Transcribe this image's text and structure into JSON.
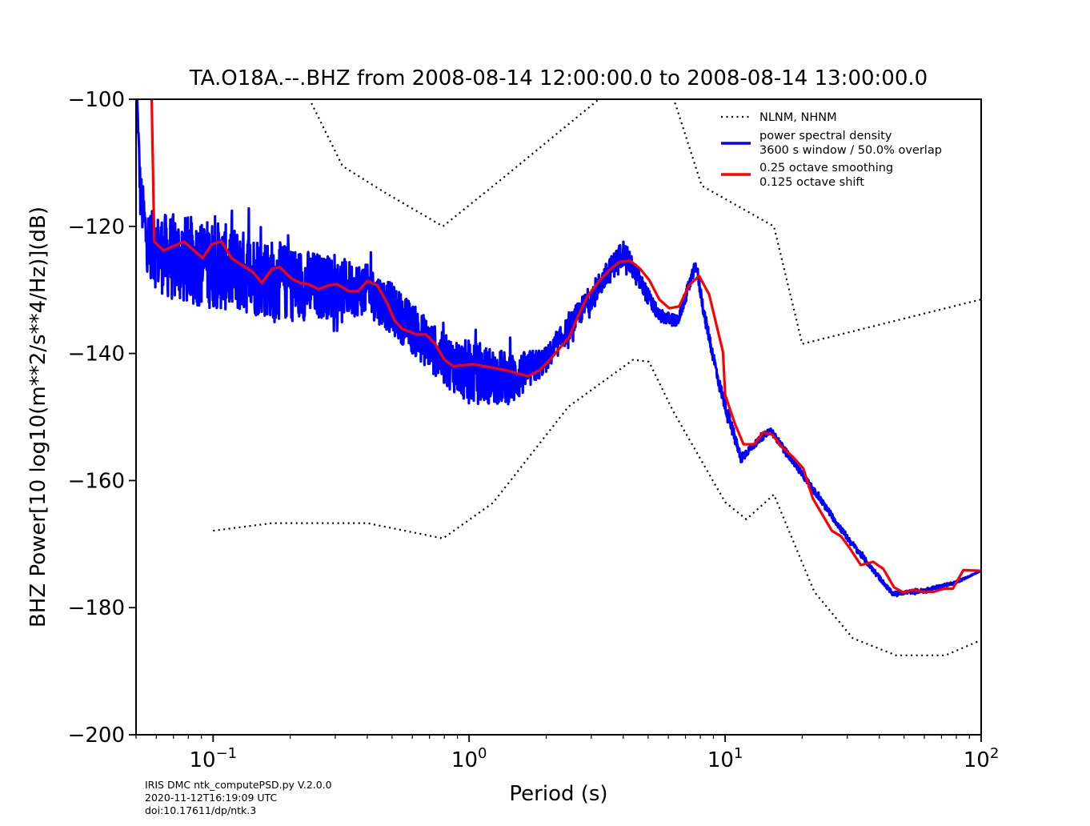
{
  "chart_data": {
    "type": "line",
    "title": "TA.O18A.--.BHZ from  2008-08-14 12:00:00.0 to 2008-08-14 13:00:00.0",
    "xlabel": "Period (s)",
    "ylabel": "BHZ Power[10 log10(m**2/s**4/Hz)](dB)",
    "xscale": "log",
    "xlim": [
      0.05,
      100
    ],
    "ylim": [
      -200,
      -100
    ],
    "x_ticks": [
      {
        "value": 0.1,
        "base": "10",
        "exp": "−1"
      },
      {
        "value": 1,
        "base": "10",
        "exp": "0"
      },
      {
        "value": 10,
        "base": "10",
        "exp": "1"
      },
      {
        "value": 100,
        "base": "10",
        "exp": "2"
      }
    ],
    "y_ticks": [
      {
        "value": -100,
        "label": "−100"
      },
      {
        "value": -120,
        "label": "−120"
      },
      {
        "value": -140,
        "label": "−140"
      },
      {
        "value": -160,
        "label": "−160"
      },
      {
        "value": -180,
        "label": "−180"
      },
      {
        "value": -200,
        "label": "−200"
      }
    ],
    "grid": false,
    "legend_position": "top-right",
    "legend": [
      {
        "style": "dotted",
        "color": "#000000",
        "lines": [
          "NLNM, NHNM"
        ]
      },
      {
        "style": "solid",
        "color": "#0000ff",
        "lines": [
          "power spectral density",
          "3600 s window / 50.0% overlap"
        ]
      },
      {
        "style": "solid",
        "color": "#ff0000",
        "lines": [
          "0.25 octave smoothing",
          "0.125 octave shift"
        ]
      }
    ],
    "series": [
      {
        "name": "NLNM",
        "color": "#000000",
        "style": "dotted",
        "x": [
          0.1,
          0.17,
          0.4,
          0.79,
          1.24,
          2.44,
          4.37,
          5.04,
          6.25,
          10,
          12.1,
          15.5,
          22.3,
          31.5,
          46.5,
          72.5,
          100
        ],
        "y": [
          -167.9,
          -166.7,
          -166.7,
          -169.1,
          -163.5,
          -148.4,
          -141.0,
          -141.3,
          -149.0,
          -163.4,
          -166.1,
          -162.2,
          -177.5,
          -184.8,
          -187.5,
          -187.5,
          -185.1
        ]
      },
      {
        "name": "NHNM",
        "color": "#000000",
        "style": "dotted",
        "x": [
          0.2,
          0.238,
          0.32,
          0.465,
          0.79,
          1.29,
          3.19,
          3.6,
          5.8,
          6.4,
          8.1,
          15.5,
          20,
          100
        ],
        "y": [
          -95,
          -100,
          -110.5,
          -114.6,
          -120,
          -113.1,
          -100.1,
          -97,
          -97,
          -100.8,
          -113.6,
          -120,
          -138.5,
          -131.5
        ]
      },
      {
        "name": "0.25 octave smoothing / 0.125 octave shift",
        "color": "#ff0000",
        "style": "solid",
        "x": [
          0.0575,
          0.0589,
          0.064,
          0.077,
          0.091,
          0.099,
          0.108,
          0.118,
          0.132,
          0.143,
          0.155,
          0.17,
          0.182,
          0.202,
          0.219,
          0.236,
          0.258,
          0.282,
          0.305,
          0.339,
          0.368,
          0.401,
          0.438,
          0.478,
          0.511,
          0.546,
          0.622,
          0.678,
          0.737,
          0.801,
          0.867,
          1.04,
          1.22,
          1.41,
          1.7,
          1.89,
          2.08,
          2.46,
          2.62,
          2.9,
          3.24,
          3.55,
          3.87,
          4.26,
          4.66,
          5.06,
          5.53,
          6.05,
          6.61,
          7.23,
          7.91,
          8.66,
          9.81,
          10.0,
          10.9,
          11.8,
          13.0,
          14.1,
          15.3,
          16.6,
          18.3,
          20.2,
          22.0,
          26.1,
          28.4,
          30.5,
          33.9,
          37.9,
          41.5,
          45.7,
          49.6,
          54.3,
          59.7,
          65.3,
          71.9,
          77.5,
          85.2,
          100
        ],
        "y": [
          -99,
          -122.4,
          -123.8,
          -122.4,
          -125.0,
          -122.8,
          -122.4,
          -125.0,
          -126.3,
          -127.2,
          -128.9,
          -126.7,
          -126.4,
          -128.2,
          -128.9,
          -129.1,
          -129.9,
          -129.3,
          -129.1,
          -130.2,
          -130.2,
          -128.6,
          -129.3,
          -132.0,
          -134.8,
          -136.1,
          -137.0,
          -137.0,
          -138.5,
          -141.0,
          -142.0,
          -141.7,
          -142.2,
          -142.7,
          -143.6,
          -142.6,
          -140.9,
          -137.4,
          -134.8,
          -131.0,
          -128.5,
          -126.8,
          -125.6,
          -125.4,
          -126.7,
          -128.5,
          -131.5,
          -132.9,
          -132.6,
          -129.3,
          -127.8,
          -130.7,
          -139.8,
          -146.5,
          -151.0,
          -154.3,
          -154.3,
          -152.4,
          -152.8,
          -154.7,
          -156.2,
          -158.1,
          -162.8,
          -167.9,
          -168.8,
          -170.5,
          -173.3,
          -172.8,
          -173.9,
          -176.8,
          -177.6,
          -177.2,
          -177.5,
          -177.5,
          -177.0,
          -177.0,
          -174.1,
          -174.2
        ]
      },
      {
        "name": "power spectral density (3600 s window / 50.0% overlap)",
        "color": "#0000ff",
        "style": "solid",
        "x": [
          0.0505,
          0.052,
          0.055,
          0.06,
          0.07,
          0.1,
          0.2,
          0.4,
          0.5,
          0.8,
          1.0,
          1.5,
          2.0,
          3.0,
          4.0,
          5.5,
          6.5,
          7.7,
          8.3,
          9.5,
          11.5,
          12.5,
          15.0,
          20,
          30,
          45,
          60,
          80,
          100
        ],
        "y": [
          -100,
          -115,
          -122,
          -124,
          -125,
          -126,
          -129,
          -130,
          -133,
          -141,
          -143,
          -144,
          -141,
          -131,
          -124,
          -134,
          -135,
          -126,
          -134,
          -145,
          -156.5,
          -155,
          -152,
          -159,
          -169,
          -177.8,
          -177.3,
          -176,
          -174.2
        ],
        "noise_amplitude_db": [
          0,
          4,
          5,
          6,
          7,
          7,
          6,
          4,
          4,
          4,
          5,
          4,
          2,
          2,
          2,
          1,
          1,
          1,
          1,
          1,
          1,
          0.5,
          0.5,
          0.5,
          0.5,
          0.3,
          0.3,
          0.2,
          0
        ]
      }
    ],
    "footer": {
      "lines": [
        "IRIS DMC ntk_computePSD.py V.2.0.0",
        "2020-11-12T16:19:09 UTC",
        "doi:10.17611/dp/ntk.3"
      ]
    }
  }
}
